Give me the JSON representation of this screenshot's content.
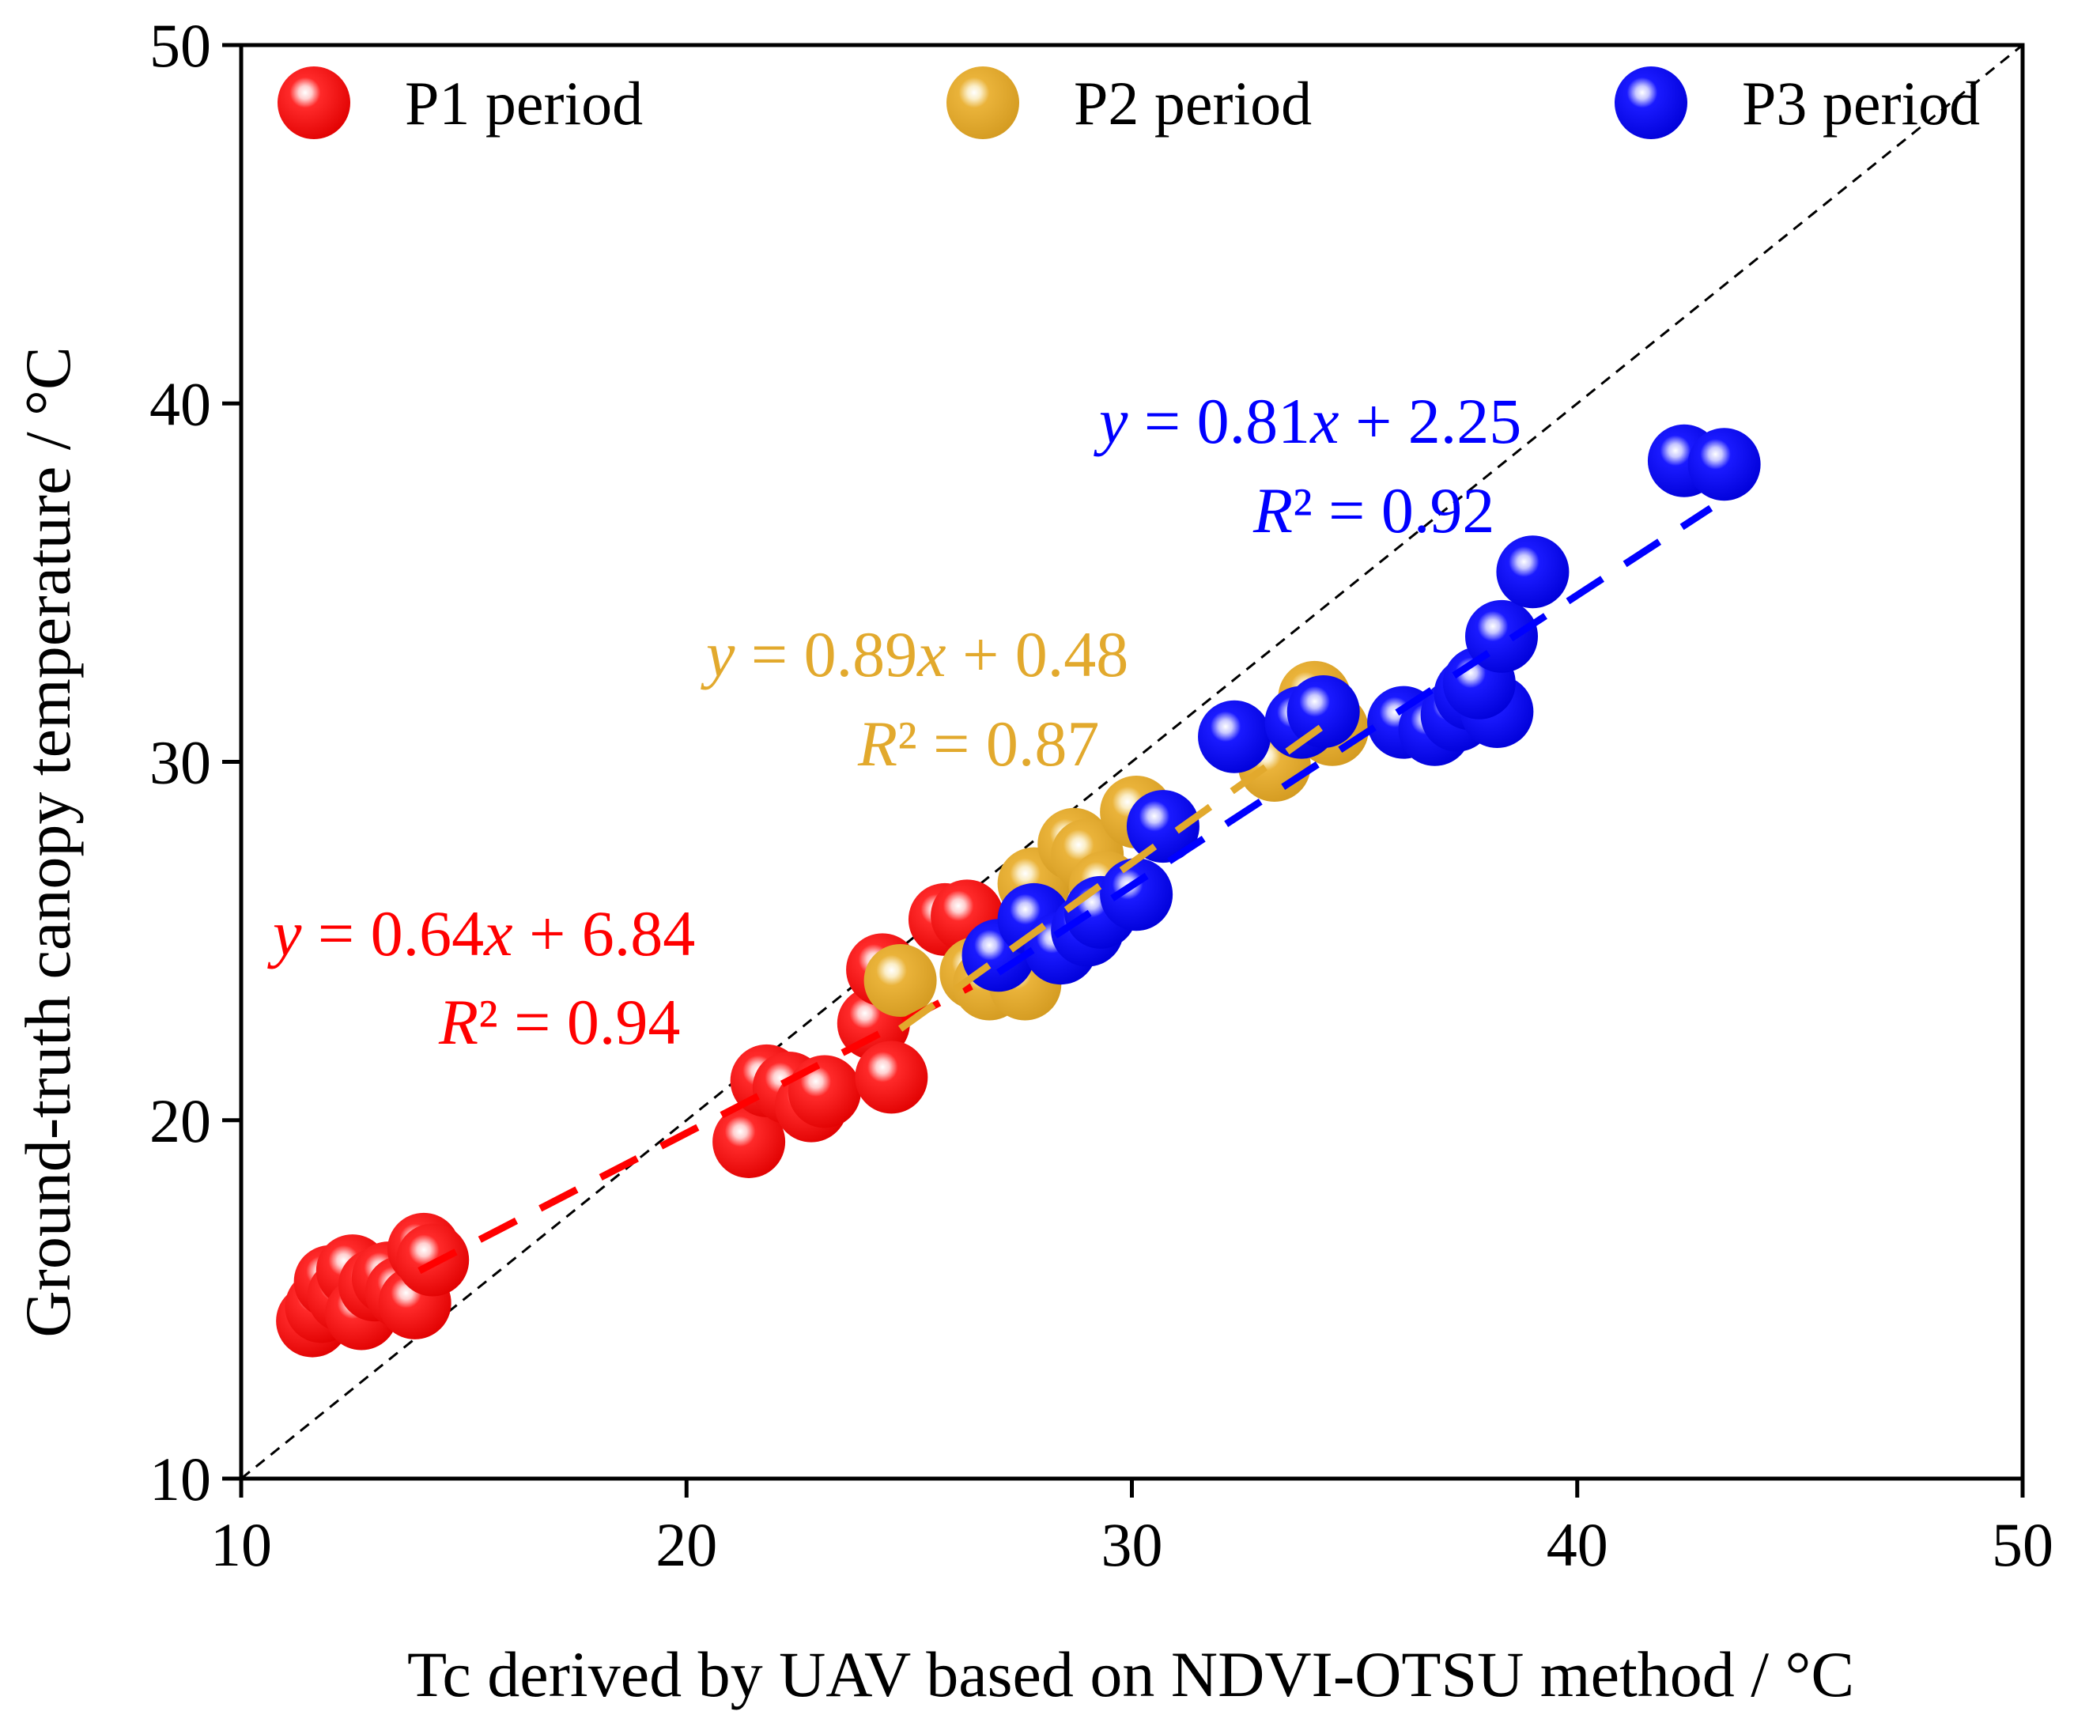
{
  "chart_data": {
    "type": "scatter",
    "xlabel": "Tc derived by UAV based on NDVI-OTSU method / °C",
    "ylabel": "Ground-truth canopy temperature / °C",
    "xlim": [
      10,
      50
    ],
    "ylim": [
      10,
      50
    ],
    "xticks": [
      "10",
      "20",
      "30",
      "40",
      "50"
    ],
    "yticks": [
      "10",
      "20",
      "30",
      "40",
      "50"
    ],
    "grid": false,
    "legend_position": "top",
    "reference_line": "1:1",
    "series": [
      {
        "name": "P1 period",
        "color": "#ff0000",
        "points": [
          [
            11.6,
            14.4
          ],
          [
            11.8,
            14.8
          ],
          [
            12.0,
            15.5
          ],
          [
            12.3,
            15.1
          ],
          [
            12.5,
            15.8
          ],
          [
            12.7,
            14.6
          ],
          [
            13.0,
            15.4
          ],
          [
            13.3,
            15.6
          ],
          [
            13.6,
            15.2
          ],
          [
            13.9,
            14.9
          ],
          [
            14.1,
            16.4
          ],
          [
            14.3,
            16.1
          ],
          [
            21.4,
            19.4
          ],
          [
            21.8,
            21.1
          ],
          [
            22.3,
            20.9
          ],
          [
            22.8,
            20.4
          ],
          [
            23.1,
            20.8
          ],
          [
            24.2,
            22.7
          ],
          [
            24.4,
            24.2
          ],
          [
            24.6,
            21.2
          ],
          [
            25.8,
            25.6
          ],
          [
            26.3,
            25.7
          ]
        ],
        "fit": {
          "slope": 0.64,
          "intercept": 6.84,
          "x_range": [
            14.0,
            26.4
          ]
        },
        "equation": "= 0.64",
        "equation_rest": " + 6.84",
        "r2": "R² = 0.94"
      },
      {
        "name": "P2 period",
        "color": "#e2a92d",
        "points": [
          [
            24.8,
            23.9
          ],
          [
            26.5,
            24.1
          ],
          [
            26.8,
            23.8
          ],
          [
            27.3,
            24.6
          ],
          [
            27.6,
            23.8
          ],
          [
            27.8,
            26.6
          ],
          [
            28.1,
            25.3
          ],
          [
            28.7,
            27.7
          ],
          [
            29.0,
            27.4
          ],
          [
            29.4,
            26.5
          ],
          [
            30.1,
            28.6
          ],
          [
            33.2,
            29.9
          ],
          [
            34.1,
            31.8
          ],
          [
            34.5,
            30.9
          ]
        ],
        "fit": {
          "slope": 0.89,
          "intercept": 0.48,
          "x_range": [
            24.8,
            34.6
          ]
        },
        "equation": "= 0.89",
        "equation_rest": " + 0.48",
        "r2": "R² = 0.87"
      },
      {
        "name": "P3 period",
        "color": "#0000ff",
        "points": [
          [
            27.0,
            24.6
          ],
          [
            27.8,
            25.6
          ],
          [
            28.4,
            24.8
          ],
          [
            29.0,
            25.3
          ],
          [
            29.3,
            25.8
          ],
          [
            30.1,
            26.3
          ],
          [
            30.7,
            28.2
          ],
          [
            32.3,
            30.7
          ],
          [
            33.8,
            31.1
          ],
          [
            34.3,
            31.4
          ],
          [
            36.1,
            31.1
          ],
          [
            36.8,
            30.9
          ],
          [
            37.3,
            31.3
          ],
          [
            37.6,
            31.9
          ],
          [
            38.2,
            31.4
          ],
          [
            37.8,
            32.2
          ],
          [
            38.3,
            33.5
          ],
          [
            39.0,
            35.3
          ],
          [
            42.4,
            38.4
          ],
          [
            43.3,
            38.3
          ]
        ],
        "fit": {
          "slope": 0.81,
          "intercept": 2.25,
          "x_range": [
            27.0,
            43.0
          ]
        },
        "equation": "= 0.81",
        "equation_rest": " + 2.25",
        "r2": "R² = 0.92"
      }
    ]
  }
}
